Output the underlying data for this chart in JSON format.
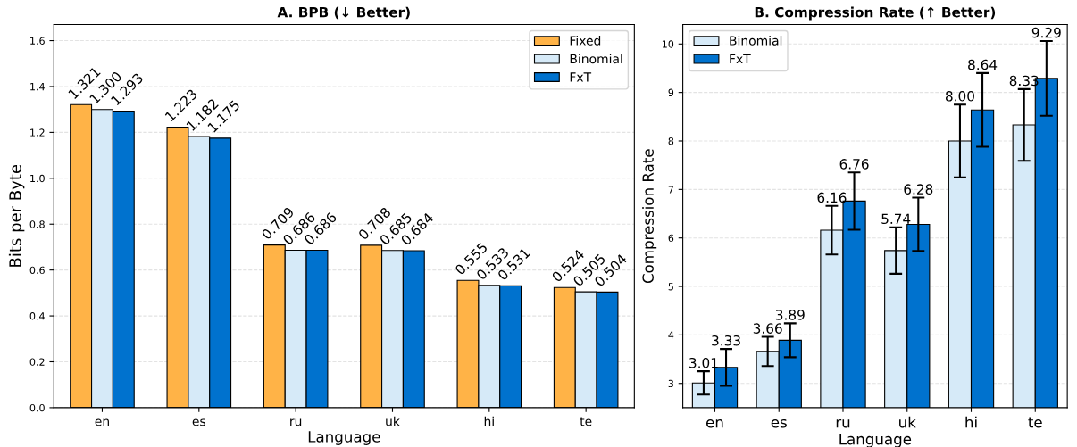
{
  "chart_data": [
    {
      "type": "bar",
      "title": "A. BPB (↓ Better)",
      "xlabel": "Language",
      "ylabel": "Bits per Byte",
      "categories": [
        "en",
        "es",
        "ru",
        "uk",
        "hi",
        "te"
      ],
      "series": [
        {
          "name": "Fixed",
          "color": "#ffb347",
          "values": [
            1.321,
            1.223,
            0.709,
            0.708,
            0.555,
            0.524
          ],
          "value_labels": [
            "1.321",
            "1.223",
            "0.709",
            "0.708",
            "0.555",
            "0.524"
          ]
        },
        {
          "name": "Binomial",
          "color": "#d6eaf8",
          "values": [
            1.3,
            1.182,
            0.686,
            0.685,
            0.533,
            0.505
          ],
          "value_labels": [
            "1.300",
            "1.182",
            "0.686",
            "0.685",
            "0.533",
            "0.505"
          ]
        },
        {
          "name": "FxT",
          "color": "#0072ce",
          "values": [
            1.293,
            1.175,
            0.686,
            0.684,
            0.531,
            0.504
          ],
          "value_labels": [
            "1.293",
            "1.175",
            "0.686",
            "0.684",
            "0.531",
            "0.504"
          ]
        }
      ],
      "ylim": [
        0,
        1.67
      ],
      "yticks": [
        {
          "value": 0,
          "label": "0.0"
        },
        0.2,
        0.4,
        0.6,
        0.8,
        {
          "value": 1,
          "label": "1.0"
        },
        1.2,
        1.4,
        1.6
      ],
      "grid": "y",
      "legend": "top right"
    },
    {
      "type": "bar",
      "title": "B. Compression Rate (↑ Better)",
      "xlabel": "Language",
      "ylabel": "Compression Rate",
      "categories": [
        "en",
        "es",
        "ru",
        "uk",
        "hi",
        "te"
      ],
      "series": [
        {
          "name": "Binomial",
          "color": "#d6eaf8",
          "values": [
            3.01,
            3.66,
            6.16,
            5.74,
            8.0,
            8.33
          ],
          "errors": [
            0.24,
            0.3,
            0.5,
            0.48,
            0.75,
            0.74
          ],
          "value_labels": [
            "3.01",
            "3.66",
            "6.16",
            "5.74",
            "8.00",
            "8.33"
          ]
        },
        {
          "name": "FxT",
          "color": "#0072ce",
          "values": [
            3.33,
            3.89,
            6.76,
            6.28,
            8.64,
            9.29
          ],
          "errors": [
            0.38,
            0.35,
            0.59,
            0.55,
            0.76,
            0.77
          ],
          "value_labels": [
            "3.33",
            "3.89",
            "6.76",
            "6.28",
            "8.64",
            "9.29"
          ]
        }
      ],
      "ylim": [
        2.5,
        10.4
      ],
      "yticks": [
        3,
        4,
        5,
        6,
        7,
        8,
        9,
        10
      ],
      "grid": "y",
      "legend": "top left"
    }
  ]
}
